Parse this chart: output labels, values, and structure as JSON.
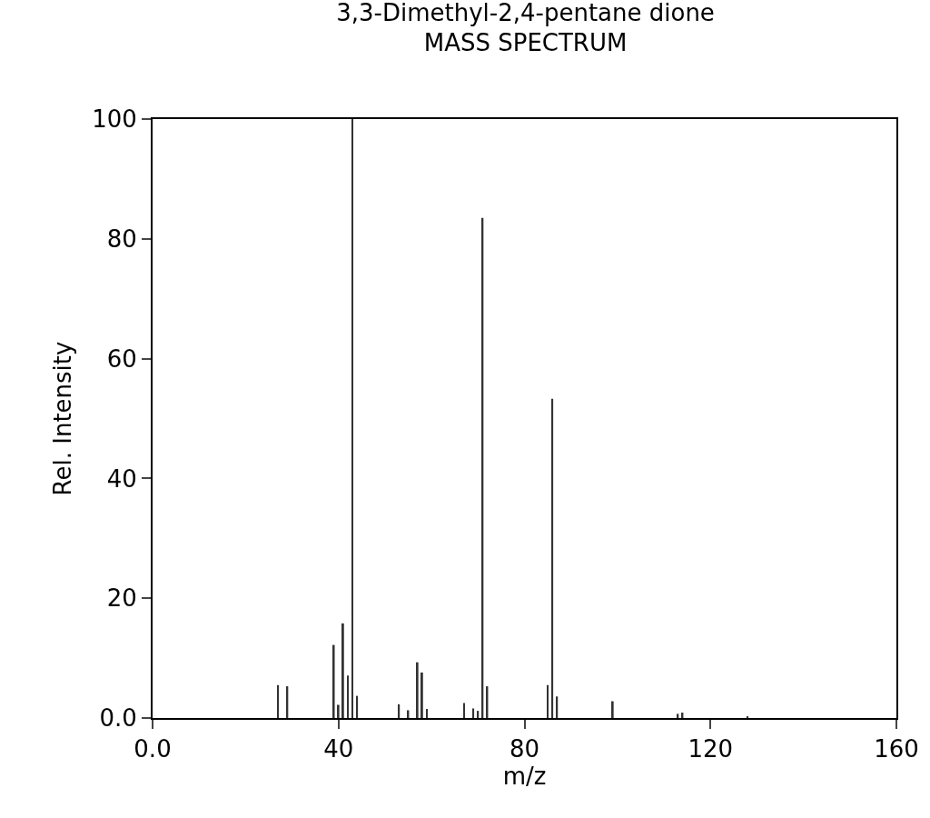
{
  "chart_data": {
    "type": "bar",
    "title": "3,3-Dimethyl-2,4-pentane dione",
    "subtitle": "MASS SPECTRUM",
    "xlabel": "m/z",
    "ylabel": "Rel. Intensity",
    "x": [
      27,
      29,
      39,
      40,
      41,
      42,
      43,
      44,
      53,
      55,
      57,
      58,
      59,
      67,
      69,
      70,
      71,
      72,
      85,
      86,
      87,
      99,
      113,
      114,
      128
    ],
    "values": [
      5.5,
      5.3,
      12.2,
      2.2,
      15.8,
      7.1,
      100,
      3.7,
      2.3,
      1.3,
      9.3,
      7.6,
      1.5,
      2.5,
      1.6,
      1.2,
      83.5,
      5.3,
      5.5,
      53.3,
      3.6,
      2.8,
      0.7,
      0.9,
      0.3
    ],
    "color": "#333333",
    "xlim": [
      0,
      160
    ],
    "xticks": [
      {
        "value": 0,
        "label": "0.0"
      },
      40,
      80,
      120,
      160
    ],
    "ylim": [
      0,
      100
    ],
    "yticks": [
      {
        "value": 0,
        "label": "0.0"
      },
      20,
      40,
      60,
      80,
      100
    ]
  }
}
